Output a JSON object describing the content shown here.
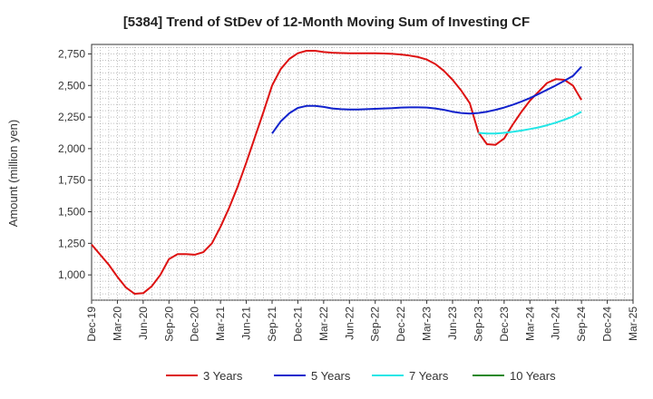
{
  "chart_data": {
    "type": "line",
    "title": "[5384]  Trend of StDev of 12-Month Moving Sum of Investing CF",
    "ylabel": "Amount (million yen)",
    "xlabel": "",
    "ylim": [
      800,
      2825
    ],
    "yticks": [
      1000,
      1250,
      1500,
      1750,
      2000,
      2250,
      2500,
      2750
    ],
    "ytick_labels": [
      "1,000",
      "1,250",
      "1,500",
      "1,750",
      "2,000",
      "2,250",
      "2,500",
      "2,750"
    ],
    "x_start": "Dec-19",
    "x_end": "Mar-25",
    "xtick_labels": [
      "Dec-19",
      "Mar-20",
      "Jun-20",
      "Sep-20",
      "Dec-20",
      "Mar-21",
      "Jun-21",
      "Sep-21",
      "Dec-21",
      "Mar-22",
      "Jun-22",
      "Sep-22",
      "Dec-22",
      "Mar-23",
      "Jun-23",
      "Sep-23",
      "Dec-23",
      "Mar-24",
      "Jun-24",
      "Sep-24",
      "Dec-24",
      "Mar-25"
    ],
    "grid": true,
    "legend_position": "bottom",
    "series": [
      {
        "name": "3 Years",
        "color": "#dd1111",
        "x": [
          "Dec-19",
          "Jan-20",
          "Feb-20",
          "Mar-20",
          "Apr-20",
          "May-20",
          "Jun-20",
          "Jul-20",
          "Aug-20",
          "Sep-20",
          "Oct-20",
          "Nov-20",
          "Dec-20",
          "Jan-21",
          "Feb-21",
          "Mar-21",
          "Apr-21",
          "May-21",
          "Jun-21",
          "Jul-21",
          "Aug-21",
          "Sep-21",
          "Oct-21",
          "Nov-21",
          "Dec-21",
          "Jan-22",
          "Feb-22",
          "Mar-22",
          "Apr-22",
          "May-22",
          "Jun-22",
          "Jul-22",
          "Aug-22",
          "Sep-22",
          "Oct-22",
          "Nov-22",
          "Dec-22",
          "Jan-23",
          "Feb-23",
          "Mar-23",
          "Apr-23",
          "May-23",
          "Jun-23",
          "Jul-23",
          "Aug-23",
          "Sep-23",
          "Oct-23",
          "Nov-23",
          "Dec-23",
          "Jan-24",
          "Feb-24",
          "Mar-24",
          "Apr-24",
          "May-24",
          "Jun-24",
          "Jul-24",
          "Aug-24",
          "Sep-24"
        ],
        "values": [
          1240,
          1160,
          1080,
          985,
          900,
          850,
          855,
          910,
          1000,
          1125,
          1165,
          1165,
          1160,
          1180,
          1250,
          1380,
          1530,
          1700,
          1890,
          2090,
          2290,
          2500,
          2630,
          2710,
          2755,
          2775,
          2775,
          2765,
          2760,
          2757,
          2755,
          2755,
          2755,
          2755,
          2753,
          2750,
          2745,
          2737,
          2725,
          2705,
          2670,
          2615,
          2545,
          2460,
          2360,
          2130,
          2035,
          2030,
          2080,
          2190,
          2290,
          2380,
          2450,
          2520,
          2550,
          2545,
          2500,
          2385
        ]
      },
      {
        "name": "5 Years",
        "color": "#1122cc",
        "x": [
          "Sep-21",
          "Oct-21",
          "Nov-21",
          "Dec-21",
          "Jan-22",
          "Feb-22",
          "Mar-22",
          "Apr-22",
          "May-22",
          "Jun-22",
          "Jul-22",
          "Aug-22",
          "Sep-22",
          "Oct-22",
          "Nov-22",
          "Dec-22",
          "Jan-23",
          "Feb-23",
          "Mar-23",
          "Apr-23",
          "May-23",
          "Jun-23",
          "Jul-23",
          "Aug-23",
          "Sep-23",
          "Oct-23",
          "Nov-23",
          "Dec-23",
          "Jan-24",
          "Feb-24",
          "Mar-24",
          "Apr-24",
          "May-24",
          "Jun-24",
          "Jul-24",
          "Aug-24",
          "Sep-24"
        ],
        "values": [
          2120,
          2215,
          2280,
          2322,
          2338,
          2338,
          2330,
          2318,
          2312,
          2310,
          2310,
          2312,
          2315,
          2318,
          2320,
          2325,
          2327,
          2327,
          2325,
          2318,
          2307,
          2292,
          2282,
          2278,
          2282,
          2292,
          2307,
          2325,
          2347,
          2372,
          2400,
          2432,
          2466,
          2500,
          2537,
          2575,
          2648
        ]
      },
      {
        "name": "7 Years",
        "color": "#22e6e6",
        "x": [
          "Sep-23",
          "Oct-23",
          "Nov-23",
          "Dec-23",
          "Jan-24",
          "Feb-24",
          "Mar-24",
          "Apr-24",
          "May-24",
          "Jun-24",
          "Jul-24",
          "Aug-24",
          "Sep-24"
        ],
        "values": [
          2125,
          2120,
          2120,
          2125,
          2133,
          2143,
          2155,
          2168,
          2185,
          2205,
          2228,
          2255,
          2292
        ]
      },
      {
        "name": "10 Years",
        "color": "#228822",
        "x": [],
        "values": []
      }
    ]
  }
}
